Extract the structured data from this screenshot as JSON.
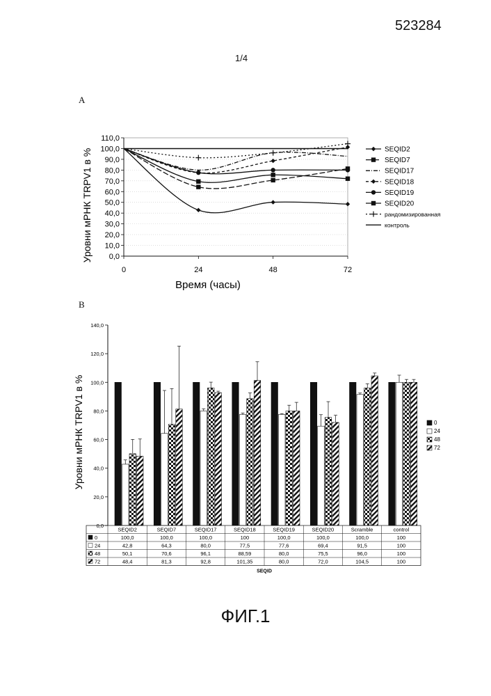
{
  "header": {
    "doc_number": "523284",
    "page_number": "1/4"
  },
  "panel_labels": {
    "a": "A",
    "b": "B"
  },
  "figure_caption": "ФИГ.1",
  "chart_data": [
    {
      "type": "line",
      "xlabel": "Время (часы)",
      "ylabel": "Уровни мРНК TRPV1 в %",
      "x": [
        0,
        24,
        48,
        72
      ],
      "xticks": [
        "0",
        "24",
        "48",
        "72"
      ],
      "xlim": [
        0,
        72
      ],
      "ylim": [
        0,
        110
      ],
      "yticks": [
        "0,0",
        "10,0",
        "20,0",
        "30,0",
        "40,0",
        "50,0",
        "60,0",
        "70,0",
        "80,0",
        "90,0",
        "100,0",
        "110,0"
      ],
      "grid": true,
      "legend_position": "right",
      "series": [
        {
          "name": "SEQID2",
          "values": [
            100,
            42.8,
            50.1,
            48.4
          ],
          "marker": "diamond",
          "dash": "solid"
        },
        {
          "name": "SEQID7",
          "values": [
            100,
            64.3,
            70.6,
            81.3
          ],
          "marker": "square",
          "dash": "longdash"
        },
        {
          "name": "SEQID17",
          "values": [
            100,
            80.0,
            96.1,
            92.8
          ],
          "marker": "none",
          "dash": "dashdot"
        },
        {
          "name": "SEQID18",
          "values": [
            100,
            77.5,
            88.59,
            101.35
          ],
          "marker": "diamond",
          "dash": "dashed"
        },
        {
          "name": "SEQID19",
          "values": [
            100,
            77.6,
            80.0,
            80.0
          ],
          "marker": "circle",
          "dash": "solid"
        },
        {
          "name": "SEQID20",
          "values": [
            100,
            69.4,
            75.5,
            72.0
          ],
          "marker": "square",
          "dash": "solid"
        },
        {
          "name": "рандомизированная",
          "values": [
            100,
            91.5,
            96.0,
            104.5
          ],
          "marker": "plus",
          "dash": "dotted"
        },
        {
          "name": "контроль",
          "values": [
            100,
            100,
            100,
            100
          ],
          "marker": "none",
          "dash": "solid"
        }
      ]
    },
    {
      "type": "bar",
      "xlabel": "SEQID",
      "ylabel": "Уровни мРНК TRPV1 в %",
      "ylim": [
        0,
        140
      ],
      "yticks": [
        "0,0",
        "20,0",
        "40,0",
        "60,0",
        "80,0",
        "100,0",
        "120,0",
        "140,0"
      ],
      "categories": [
        "SEQID2",
        "SEQID7",
        "SEQID17",
        "SEQID18",
        "SEQID19",
        "SEQID20",
        "Scramble",
        "control"
      ],
      "legend_position": "right",
      "series": [
        {
          "name": "0",
          "values": [
            100,
            100,
            100,
            100,
            100,
            100,
            100,
            100
          ],
          "pattern": "black",
          "error": [
            0,
            0,
            0,
            0,
            0,
            0,
            0,
            0
          ],
          "labels": [
            "100,0",
            "100,0",
            "100,0",
            "100",
            "100,0",
            "100,0",
            "100,0",
            "100"
          ]
        },
        {
          "name": "24",
          "values": [
            42.8,
            64.3,
            80.0,
            77.5,
            77.6,
            69.4,
            91.5,
            100
          ],
          "pattern": "white",
          "error": [
            3,
            30,
            1.5,
            1,
            0.5,
            8,
            1,
            5
          ],
          "labels": [
            "42,8",
            "64,3",
            "80,0",
            "77,5",
            "77,6",
            "69,4",
            "91,5",
            "100"
          ]
        },
        {
          "name": "48",
          "values": [
            50.1,
            70.6,
            96.1,
            88.59,
            80.0,
            75.5,
            96.0,
            100
          ],
          "pattern": "checker",
          "error": [
            10,
            25,
            4,
            4,
            4,
            11,
            3,
            2
          ],
          "labels": [
            "50,1",
            "70,6",
            "96,1",
            "88,59",
            "80,0",
            "75,5",
            "96,0",
            "100"
          ]
        },
        {
          "name": "72",
          "values": [
            48.4,
            81.3,
            92.8,
            101.35,
            80.0,
            72.0,
            104.5,
            100
          ],
          "pattern": "hatch",
          "error": [
            12,
            44,
            1,
            13,
            6,
            5,
            2,
            2
          ],
          "labels": [
            "48,4",
            "81,3",
            "92,8",
            "101,35",
            "80,0",
            "72,0",
            "104,5",
            "100"
          ]
        }
      ]
    }
  ]
}
